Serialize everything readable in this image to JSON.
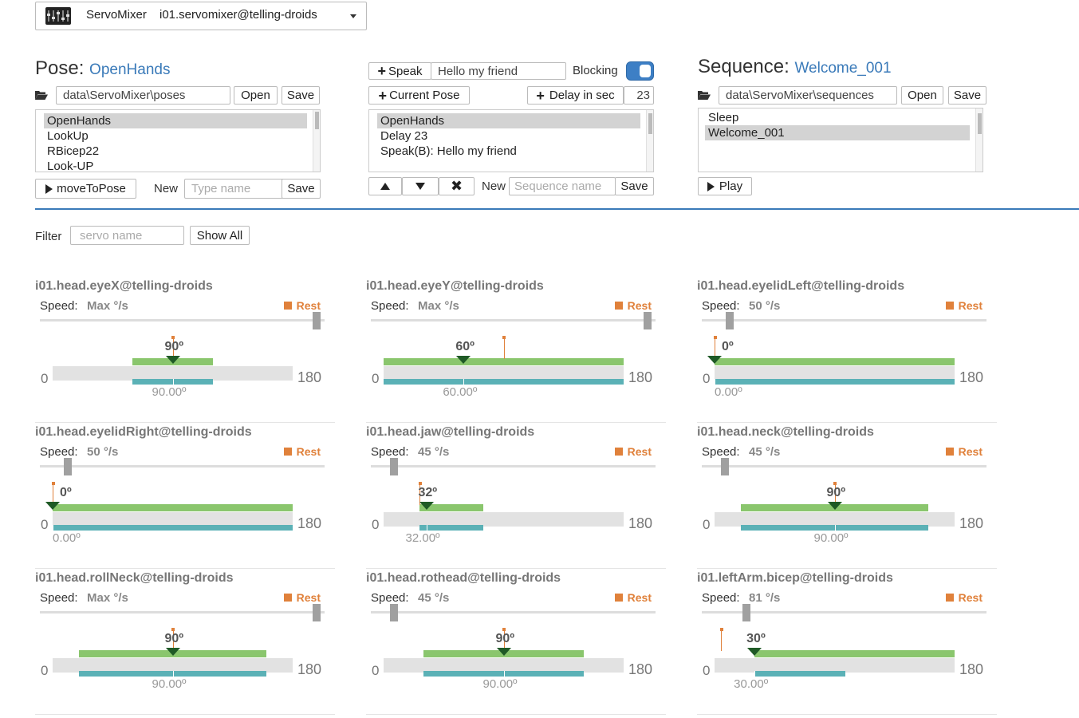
{
  "service_selector": {
    "name": "ServoMixer",
    "address": "i01.servomixer@telling-droids"
  },
  "pose": {
    "heading": "Pose:",
    "name": "OpenHands",
    "directory": "data\\ServoMixer\\poses",
    "open_label": "Open",
    "save_label": "Save",
    "items": [
      "OpenHands",
      "LookUp",
      "RBicep22",
      "Look-UP"
    ],
    "selected_index": 0,
    "move_to_pose_label": "moveToPose",
    "new_label": "New",
    "new_placeholder": "Type name",
    "new_save_label": "Save"
  },
  "middle": {
    "speak_label": "Speak",
    "speak_text": "Hello my friend",
    "blocking_label": "Blocking",
    "blocking_on": true,
    "current_pose_label": "Current Pose",
    "delay_label": "Delay in sec",
    "delay_value": "23",
    "items": [
      "OpenHands",
      "Delay 23",
      "Speak(B): Hello my friend"
    ],
    "selected_index": 0,
    "new_label": "New",
    "new_placeholder": "Sequence name",
    "save_label": "Save"
  },
  "sequence": {
    "heading": "Sequence:",
    "name": "Welcome_001",
    "directory": "data\\ServoMixer\\sequences",
    "open_label": "Open",
    "save_label": "Save",
    "items": [
      "Sleep",
      "Welcome_001"
    ],
    "selected_index": 1,
    "play_label": "Play"
  },
  "filter": {
    "label": "Filter",
    "placeholder": "servo name",
    "show_all_label": "Show All"
  },
  "servos": [
    {
      "name": "i01.head.eyeX@telling-droids",
      "speed": "Max °/s",
      "speed_level": 1.0,
      "rest_label": "Rest",
      "min": "0",
      "max": "180",
      "target": "90º",
      "target_value": 90,
      "range_min": 60,
      "range_max": 120,
      "rest_value": 90,
      "current": "90.00º",
      "current_value": 90
    },
    {
      "name": "i01.head.eyeY@telling-droids",
      "speed": "Max °/s",
      "speed_level": 1.0,
      "rest_label": "Rest",
      "min": "0",
      "max": "180",
      "target": "60º",
      "target_value": 60,
      "range_min": 0,
      "range_max": 180,
      "rest_value": 90,
      "current": "60.00º",
      "current_value": 60
    },
    {
      "name": "i01.head.eyelidLeft@telling-droids",
      "speed": "50 °/s",
      "speed_level": 0.1,
      "rest_label": "Rest",
      "min": "0",
      "max": "180",
      "target": "0º",
      "target_value": 0,
      "range_min": 0,
      "range_max": 180,
      "rest_value": 0,
      "current": "0.00º",
      "current_value": 0
    },
    {
      "name": "i01.head.eyelidRight@telling-droids",
      "speed": "50 °/s",
      "speed_level": 0.1,
      "rest_label": "Rest",
      "min": "0",
      "max": "180",
      "target": "0º",
      "target_value": 0,
      "range_min": 0,
      "range_max": 180,
      "rest_value": 0,
      "current": "0.00º",
      "current_value": 0
    },
    {
      "name": "i01.head.jaw@telling-droids",
      "speed": "45 °/s",
      "speed_level": 0.085,
      "rest_label": "Rest",
      "min": "0",
      "max": "180",
      "target": "32º",
      "target_value": 32,
      "range_min": 27,
      "range_max": 75,
      "rest_value": 27,
      "current": "32.00º",
      "current_value": 32
    },
    {
      "name": "i01.head.neck@telling-droids",
      "speed": "45 °/s",
      "speed_level": 0.085,
      "rest_label": "Rest",
      "min": "0",
      "max": "180",
      "target": "90º",
      "target_value": 90,
      "range_min": 20,
      "range_max": 160,
      "rest_value": 90,
      "current": "90.00º",
      "current_value": 90
    },
    {
      "name": "i01.head.rollNeck@telling-droids",
      "speed": "Max °/s",
      "speed_level": 1.0,
      "rest_label": "Rest",
      "min": "0",
      "max": "180",
      "target": "90º",
      "target_value": 90,
      "range_min": 20,
      "range_max": 160,
      "rest_value": 90,
      "current": "90.00º",
      "current_value": 90
    },
    {
      "name": "i01.head.rothead@telling-droids",
      "speed": "45 °/s",
      "speed_level": 0.085,
      "rest_label": "Rest",
      "min": "0",
      "max": "180",
      "target": "90º",
      "target_value": 90,
      "range_min": 30,
      "range_max": 150,
      "rest_value": 90,
      "current": "90.00º",
      "current_value": 90
    },
    {
      "name": "i01.leftArm.bicep@telling-droids",
      "speed": "81 °/s",
      "speed_level": 0.16,
      "rest_label": "Rest",
      "min": "0",
      "max": "180",
      "target": "30º",
      "target_value": 30,
      "range_min": 30,
      "range_max": 180,
      "range_teal_max": 98,
      "rest_value": 5,
      "current": "30.00º",
      "current_value": 30
    }
  ],
  "colors": {
    "accent": "#3a7ab9",
    "rest": "#e0813b",
    "range": "#8ac66d",
    "current": "#5bb1b6",
    "pointer": "#1f5a26"
  }
}
